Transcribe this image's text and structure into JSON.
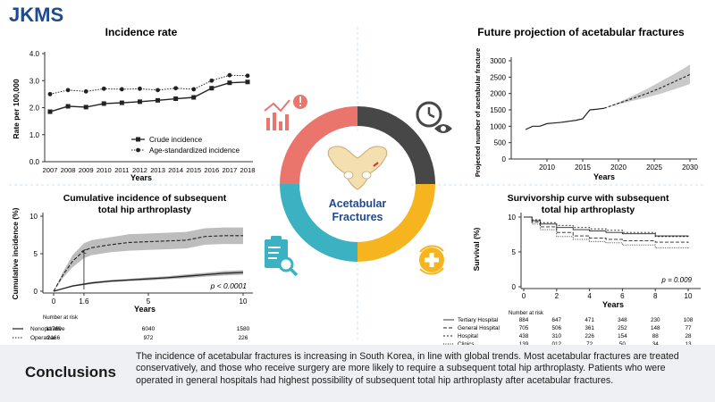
{
  "logo": "JKMS",
  "colors": {
    "red": "#e9756d",
    "dark": "#474747",
    "teal": "#3bb1c1",
    "yellow": "#f6b51e",
    "brand": "#1f4a8f",
    "band": "#c9c9c9"
  },
  "center": {
    "title_line1": "Acetabular",
    "title_line2": "Fractures"
  },
  "icons": [
    "chart-alert-icon",
    "clock-eye-icon",
    "clipboard-search-icon",
    "medical-cross-icon",
    "pelvis-bone-icon"
  ],
  "panels": {
    "incidence": {
      "title": "Incidence rate",
      "ylabel": "Rate per 100,000",
      "xlabel": "Years",
      "y_ticks": [
        "0.0",
        "1.0",
        "2.0",
        "3.0",
        "4.0"
      ],
      "legend": [
        "Crude incidence",
        "Age-standardized incidence"
      ]
    },
    "projection": {
      "title": "Future projection of acetabular fractures",
      "ylabel": "Projected number of acetabular fracture",
      "xlabel": "Years",
      "y_ticks": [
        "0",
        "500",
        "1000",
        "1500",
        "2000",
        "2500",
        "3000"
      ],
      "x_ticks": [
        "2010",
        "2015",
        "2020",
        "2025",
        "2030"
      ]
    },
    "cumulative": {
      "title_line1": "Cumulative incidence of subsequent",
      "title_line2": "total hip arthroplasty",
      "ylabel": "Cumulative incidence (%)",
      "xlabel": "Years",
      "y_ticks": [
        "0",
        "5",
        "10"
      ],
      "x_ticks": [
        "0",
        "1.6",
        "5",
        "10"
      ],
      "pvalue": "p < 0.0001",
      "risk_header": "Number at risk",
      "risk_rows": [
        {
          "label": "Nonoperative",
          "values": [
            "11769",
            "6040",
            "1580"
          ]
        },
        {
          "label": "Operative",
          "values": [
            "2166",
            "972",
            "226"
          ]
        }
      ]
    },
    "survivorship": {
      "title_line1": "Survivorship curve with subsequent",
      "title_line2": "total hip arthroplasty",
      "ylabel": "Survival (%)",
      "xlabel": "Years",
      "y_ticks": [
        "0",
        "5",
        "10"
      ],
      "x_ticks": [
        "0",
        "2",
        "4",
        "6",
        "8",
        "10"
      ],
      "pvalue": "p = 0.009",
      "risk_header": "Number at risk",
      "risk_rows": [
        {
          "label": "Tertiary Hospital",
          "values": [
            "884",
            "647",
            "471",
            "348",
            "230",
            "108"
          ]
        },
        {
          "label": "General Hospital",
          "values": [
            "705",
            "506",
            "361",
            "252",
            "148",
            "77"
          ]
        },
        {
          "label": "Hospital",
          "values": [
            "438",
            "310",
            "226",
            "154",
            "88",
            "28"
          ]
        },
        {
          "label": "Clinics",
          "values": [
            "139",
            "012",
            "72",
            "50",
            "34",
            "13"
          ]
        }
      ]
    }
  },
  "conclusions": {
    "title": "Conclusions",
    "text": "The incidence of acetabular fractures is increasing in South Korea, in line with global trends. Most acetabular fractures are treated conservatively, and those who receive surgery are more likely to require a subsequent total hip arthroplasty. Patients who were operated in general hospitals had highest possibility of subsequent total hip arthroplasty after acetabular fractures."
  },
  "chart_data": [
    {
      "type": "line",
      "title": "Incidence rate",
      "xlabel": "Years",
      "ylabel": "Rate per 100,000",
      "ylim": [
        0,
        4
      ],
      "x": [
        2007,
        2008,
        2009,
        2010,
        2011,
        2012,
        2013,
        2014,
        2015,
        2016,
        2017,
        2018
      ],
      "series": [
        {
          "name": "Crude incidence",
          "values": [
            1.85,
            2.05,
            2.02,
            2.15,
            2.18,
            2.22,
            2.27,
            2.33,
            2.38,
            2.72,
            2.92,
            2.95
          ]
        },
        {
          "name": "Age-standardized incidence",
          "values": [
            2.5,
            2.65,
            2.6,
            2.7,
            2.68,
            2.7,
            2.65,
            2.72,
            2.68,
            3.0,
            3.2,
            3.18
          ]
        }
      ]
    },
    {
      "type": "area",
      "title": "Future projection of acetabular fractures",
      "xlabel": "Years",
      "ylabel": "Projected number of acetabular fracture",
      "ylim": [
        0,
        3000
      ],
      "xlim": [
        2005,
        2031
      ],
      "series": [
        {
          "name": "Observed",
          "x": [
            2007,
            2008,
            2009,
            2010,
            2011,
            2012,
            2013,
            2014,
            2015,
            2016,
            2017,
            2018
          ],
          "values": [
            900,
            1000,
            1000,
            1080,
            1100,
            1120,
            1150,
            1180,
            1230,
            1500,
            1520,
            1550
          ]
        },
        {
          "name": "Projected",
          "x": [
            2018,
            2020,
            2022,
            2024,
            2026,
            2028,
            2030
          ],
          "values": [
            1550,
            1700,
            1850,
            2000,
            2180,
            2380,
            2580
          ]
        },
        {
          "name": "Upper bound",
          "x": [
            2018,
            2020,
            2022,
            2024,
            2026,
            2028,
            2030
          ],
          "values": [
            1550,
            1730,
            1930,
            2140,
            2380,
            2620,
            2880
          ]
        },
        {
          "name": "Lower bound",
          "x": [
            2018,
            2020,
            2022,
            2024,
            2026,
            2028,
            2030
          ],
          "values": [
            1550,
            1670,
            1780,
            1880,
            2000,
            2140,
            2290
          ]
        }
      ]
    },
    {
      "type": "line",
      "title": "Cumulative incidence of subsequent total hip arthroplasty",
      "xlabel": "Years",
      "ylabel": "Cumulative incidence (%)",
      "ylim": [
        0,
        10
      ],
      "xlim": [
        0,
        10
      ],
      "annotation": {
        "x": 1.6,
        "text": "p < 0.0001"
      },
      "series": [
        {
          "name": "Operative",
          "x": [
            0,
            0.5,
            1,
            1.6,
            2,
            3,
            4,
            5,
            6,
            7,
            8,
            9,
            10
          ],
          "values": [
            0,
            2.2,
            4.0,
            5.4,
            5.8,
            6.2,
            6.5,
            6.6,
            6.7,
            6.8,
            7.3,
            7.4,
            7.4
          ],
          "lower": [
            0,
            1.8,
            3.2,
            4.4,
            4.8,
            5.2,
            5.4,
            5.5,
            5.6,
            5.7,
            6.2,
            6.3,
            6.3
          ],
          "upper": [
            0,
            2.6,
            4.8,
            6.4,
            6.8,
            7.2,
            7.6,
            7.7,
            7.8,
            7.9,
            8.4,
            8.5,
            8.5
          ]
        },
        {
          "name": "Nonoperative",
          "x": [
            0,
            1,
            2,
            3,
            4,
            5,
            6,
            7,
            8,
            9,
            10
          ],
          "values": [
            0,
            0.7,
            1.1,
            1.35,
            1.5,
            1.65,
            1.8,
            2.0,
            2.2,
            2.4,
            2.5
          ],
          "lower": [
            0,
            0.6,
            0.95,
            1.2,
            1.35,
            1.45,
            1.6,
            1.75,
            1.95,
            2.1,
            2.2
          ],
          "upper": [
            0,
            0.8,
            1.25,
            1.5,
            1.65,
            1.85,
            2.0,
            2.25,
            2.45,
            2.7,
            2.8
          ]
        }
      ]
    },
    {
      "type": "line",
      "title": "Survivorship curve with subsequent total hip arthroplasty",
      "xlabel": "Years",
      "ylabel": "Survival (%)",
      "ylim": [
        0,
        10
      ],
      "xlim": [
        0,
        10
      ],
      "annotation": {
        "text": "p = 0.009"
      },
      "series": [
        {
          "name": "Tertiary Hospital",
          "x": [
            0,
            0.5,
            1,
            2,
            3,
            4,
            5,
            6,
            8,
            10
          ],
          "values": [
            10,
            9.5,
            9.0,
            8.5,
            8.2,
            8.0,
            7.8,
            7.6,
            7.3,
            7.2
          ]
        },
        {
          "name": "General Hospital",
          "x": [
            0,
            0.5,
            1,
            2,
            3,
            4,
            5,
            6,
            8,
            10
          ],
          "values": [
            10,
            9.3,
            8.6,
            7.8,
            7.3,
            7.0,
            6.8,
            6.6,
            6.4,
            6.3
          ]
        },
        {
          "name": "Hospital",
          "x": [
            0,
            0.5,
            1,
            2,
            3,
            4,
            5,
            6,
            8,
            10
          ],
          "values": [
            10,
            9.6,
            9.2,
            8.8,
            8.5,
            8.3,
            8.1,
            7.8,
            7.2,
            7.0
          ]
        },
        {
          "name": "Clinics",
          "x": [
            0,
            0.5,
            1,
            2,
            3,
            4,
            5,
            6,
            8,
            10
          ],
          "values": [
            10,
            9.0,
            8.2,
            7.2,
            6.8,
            6.5,
            6.3,
            6.0,
            5.6,
            5.5
          ]
        }
      ]
    }
  ]
}
